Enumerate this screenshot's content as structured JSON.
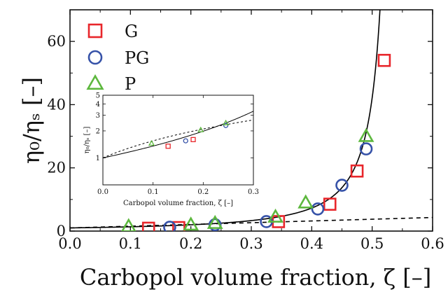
{
  "chart_data": [
    {
      "type": "scatter",
      "title": "",
      "xlabel": "Carbopol volume fraction, ζ [–]",
      "ylabel": "η₀/ηₛ [–]",
      "xlim": [
        0,
        0.6
      ],
      "ylim": [
        0,
        70
      ],
      "xticks": [
        "0.0",
        "0.1",
        "0.2",
        "0.3",
        "0.4",
        "0.5",
        "0.6"
      ],
      "yticks": [
        "0",
        "20",
        "40",
        "60"
      ],
      "legend_position": "top-left",
      "series": [
        {
          "name": "G",
          "marker": "square",
          "color": "#e8262b",
          "points": [
            [
              0.13,
              0.9
            ],
            [
              0.18,
              1.1
            ],
            [
              0.345,
              3.0
            ],
            [
              0.43,
              8.5
            ],
            [
              0.475,
              19
            ],
            [
              0.52,
              54
            ]
          ]
        },
        {
          "name": "PG",
          "marker": "circle",
          "color": "#3652a8",
          "points": [
            [
              0.165,
              1.2
            ],
            [
              0.24,
              2.0
            ],
            [
              0.325,
              3.0
            ],
            [
              0.41,
              7.0
            ],
            [
              0.45,
              14.5
            ],
            [
              0.49,
              26
            ]
          ]
        },
        {
          "name": "P",
          "marker": "triangle",
          "color": "#5db83e",
          "points": [
            [
              0.097,
              1.5
            ],
            [
              0.2,
              2.0
            ],
            [
              0.24,
              2.5
            ],
            [
              0.34,
              4.5
            ],
            [
              0.39,
              9.0
            ],
            [
              0.49,
              30
            ]
          ]
        }
      ],
      "lines": [
        {
          "style": "solid",
          "color": "#000000",
          "model": "divergent",
          "zeta_max": 0.545,
          "exponent": 1.5
        },
        {
          "style": "dashed",
          "color": "#000000",
          "model": "linear",
          "intercept": 1,
          "slope": 5.5
        }
      ]
    },
    {
      "type": "scatter",
      "title": "",
      "xlabel": "Carbopol volume fraction, ζ [–]",
      "ylabel": "η₀/ηₛ [–]",
      "xlim": [
        0,
        0.3
      ],
      "ylim": [
        0.5,
        5
      ],
      "yscale": "log",
      "xticks": [
        "0.0",
        "0.1",
        "0.2",
        "0.3"
      ],
      "yticks": [
        "1",
        "2",
        "3",
        "4",
        "5"
      ],
      "series": [
        {
          "name": "G",
          "marker": "square",
          "color": "#e8262b",
          "points": [
            [
              0.13,
              1.35
            ],
            [
              0.18,
              1.6
            ]
          ]
        },
        {
          "name": "PG",
          "marker": "circle",
          "color": "#3652a8",
          "points": [
            [
              0.165,
              1.55
            ],
            [
              0.245,
              2.3
            ]
          ]
        },
        {
          "name": "P",
          "marker": "triangle",
          "color": "#5db83e",
          "points": [
            [
              0.097,
              1.45
            ],
            [
              0.195,
              2.05
            ],
            [
              0.245,
              2.45
            ]
          ]
        }
      ]
    }
  ]
}
